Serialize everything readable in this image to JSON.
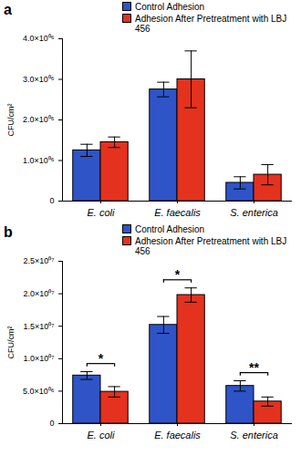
{
  "chart_data": [
    {
      "type": "bar",
      "title": "a",
      "y_label": "CFU/cm²",
      "categories": [
        "E. coli",
        "E. faecalis",
        "S. enterica"
      ],
      "series": [
        {
          "name": "Control Adhesion",
          "color": "#2e54c8",
          "values": [
            1250000,
            2750000,
            450000
          ],
          "errors": [
            150000,
            180000,
            150000
          ]
        },
        {
          "name": "Adhesion After Pretreatment with LBJ 456",
          "color": "#e4321e",
          "values": [
            1450000,
            3000000,
            650000
          ],
          "errors": [
            130000,
            700000,
            250000
          ]
        }
      ],
      "ylim": [
        0,
        4000000
      ],
      "yticks": [
        0,
        {
          "value": 1000000,
          "label": "1.0×10⁰⁶"
        },
        {
          "value": 2000000,
          "label": "2.0×10⁰⁶"
        },
        {
          "value": 3000000,
          "label": "3.0×10⁰⁶"
        },
        {
          "value": 4000000,
          "label": "4.0×10⁰⁶"
        }
      ],
      "legend": "top"
    },
    {
      "type": "bar",
      "title": "b",
      "y_label": "CFU/cm²",
      "categories": [
        "E. coli",
        "E. faecalis",
        "S. enterica"
      ],
      "series": [
        {
          "name": "Control Adhesion",
          "color": "#2e54c8",
          "values": [
            7400000,
            15200000,
            5800000
          ],
          "errors": [
            600000,
            1300000,
            800000
          ]
        },
        {
          "name": "Adhesion After Pretreatment with LBJ 456",
          "color": "#e4321e",
          "values": [
            4900000,
            19800000,
            3400000
          ],
          "errors": [
            800000,
            1100000,
            700000
          ]
        }
      ],
      "ylim": [
        0,
        25000000
      ],
      "yticks": [
        0,
        {
          "value": 5000000,
          "label": "5.0×10⁰⁶"
        },
        {
          "value": 10000000,
          "label": "1.0×10⁰⁷"
        },
        {
          "value": 15000000,
          "label": "1.5×10⁰⁷"
        },
        {
          "value": 20000000,
          "label": "2.0×10⁰⁷"
        },
        {
          "value": 25000000,
          "label": "2.5×10⁰⁷"
        }
      ],
      "legend": "top",
      "annotations": [
        {
          "category": "E. coli",
          "text": "*"
        },
        {
          "category": "E. faecalis",
          "text": "*"
        },
        {
          "category": "S. enterica",
          "text": "**"
        }
      ]
    }
  ]
}
